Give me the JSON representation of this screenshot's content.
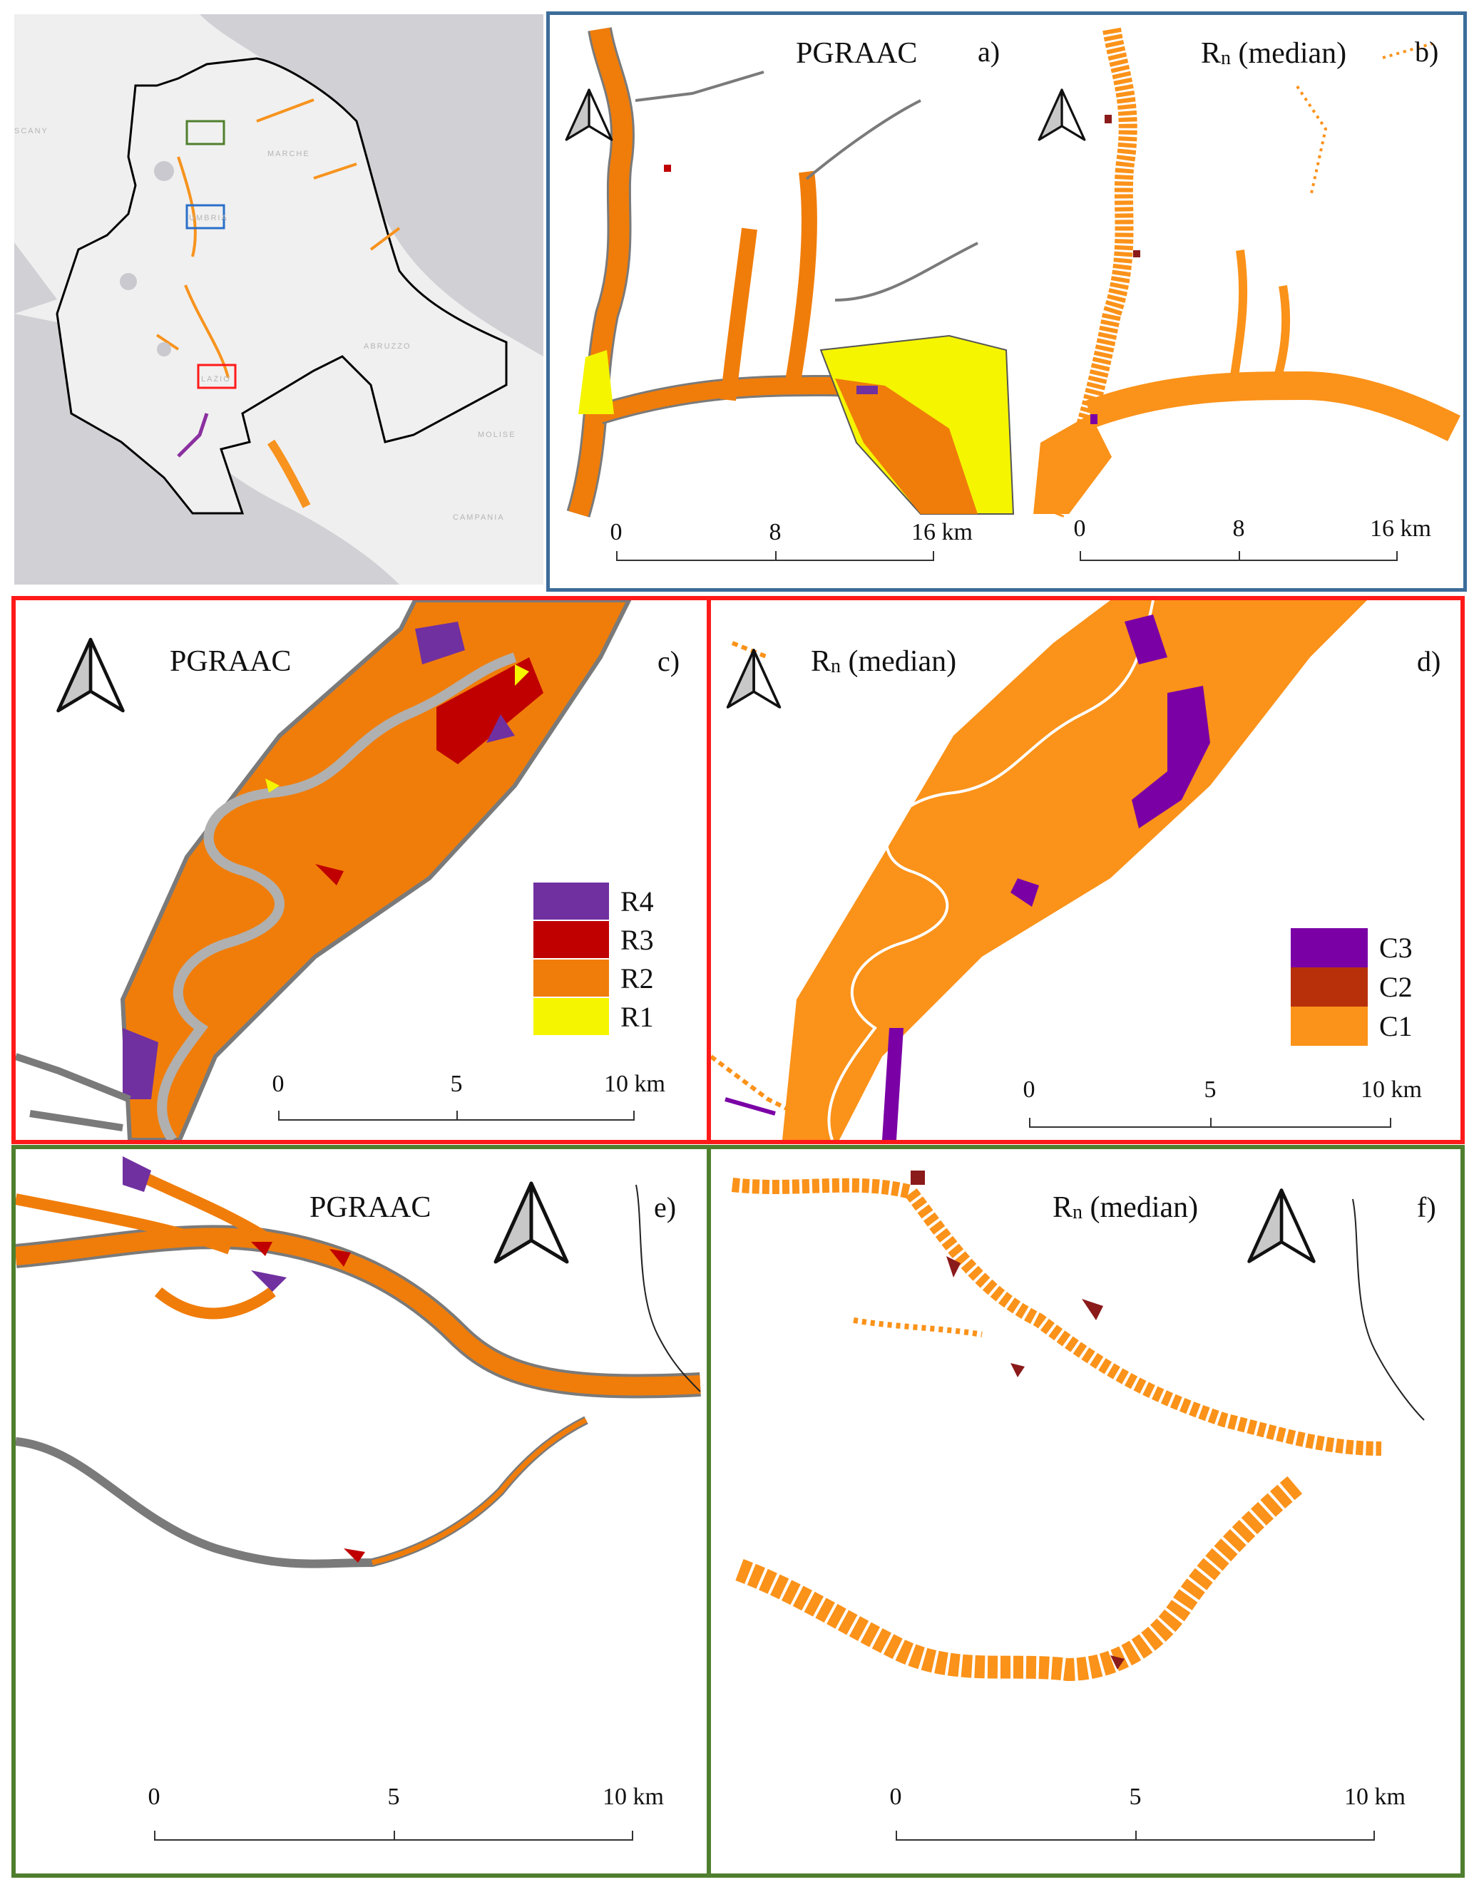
{
  "colors": {
    "blue_frame": "#3c6d9a",
    "red_frame": "#ff1a1a",
    "green_frame": "#4f7f2e",
    "R4": "#7030a0",
    "R3": "#c00000",
    "R2": "#f07d0a",
    "R1": "#f5f500",
    "C3": "#7a00a6",
    "C2": "#b8300a",
    "C1": "#fb9219",
    "outline": "#7a7a7a",
    "sea": "#d0d0d5",
    "land": "#efefef"
  },
  "overview": {
    "labels": [
      "SCANY",
      "MARCHE",
      "UMBRIA",
      "LAZIO",
      "ABRUZZO",
      "MOLISE",
      "CAMPANIA"
    ]
  },
  "panels": {
    "a": {
      "title": "PGRAAC",
      "letter": "a)",
      "scale": [
        "0",
        "8",
        "16 km"
      ]
    },
    "b": {
      "title_main": "R",
      "title_sub": "n",
      "title_rest": " (median)",
      "letter": "b)",
      "scale": [
        "0",
        "8",
        "16 km"
      ]
    },
    "c": {
      "title": "PGRAAC",
      "letter": "c)",
      "scale": [
        "0",
        "5",
        "10 km"
      ],
      "legend": [
        {
          "label": "R4",
          "color": "#7030a0"
        },
        {
          "label": "R3",
          "color": "#c00000"
        },
        {
          "label": "R2",
          "color": "#f07d0a"
        },
        {
          "label": "R1",
          "color": "#f5f500"
        }
      ]
    },
    "d": {
      "title_main": "R",
      "title_sub": "n",
      "title_rest": " (median)",
      "letter": "d)",
      "scale": [
        "0",
        "5",
        "10 km"
      ],
      "legend": [
        {
          "label": "C3",
          "color": "#7a00a6"
        },
        {
          "label": "C2",
          "color": "#b8300a"
        },
        {
          "label": "C1",
          "color": "#fb9219"
        }
      ]
    },
    "e": {
      "title": "PGRAAC",
      "letter": "e)",
      "scale": [
        "0",
        "5",
        "10 km"
      ]
    },
    "f": {
      "title_main": "R",
      "title_sub": "n",
      "title_rest": " (median)",
      "letter": "f)",
      "scale": [
        "0",
        "5",
        "10 km"
      ]
    }
  }
}
